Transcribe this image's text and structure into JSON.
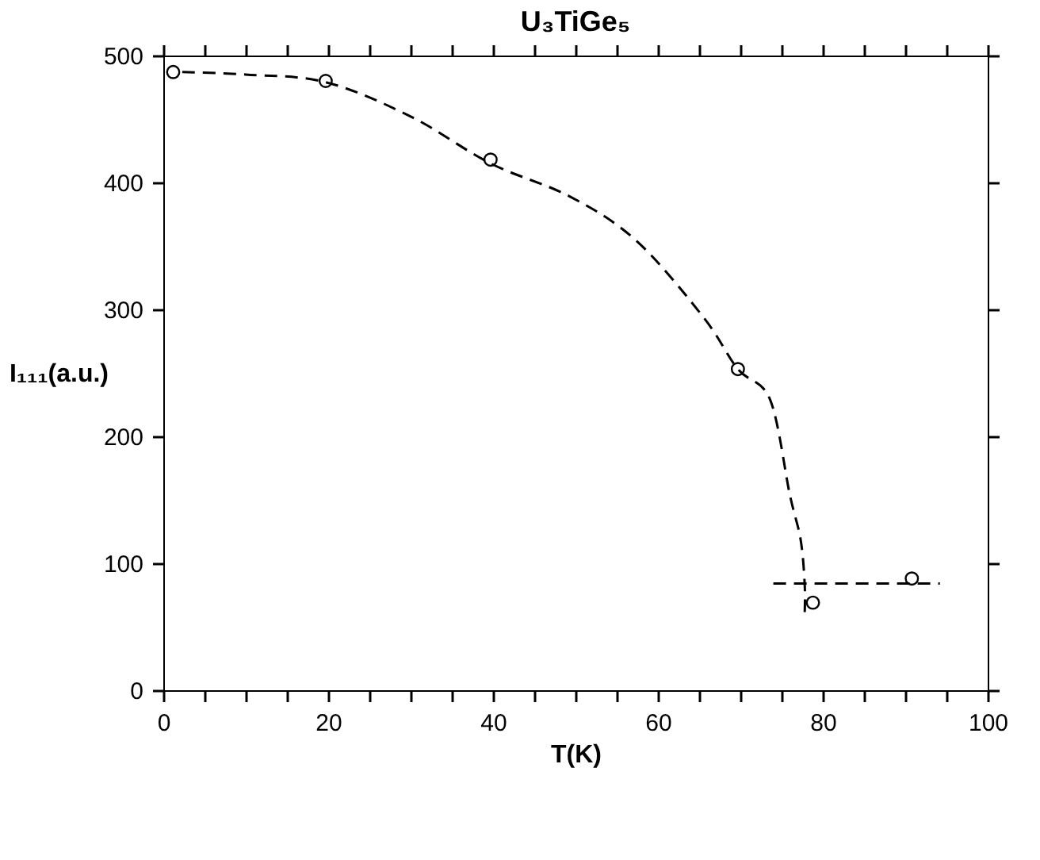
{
  "chart_data": {
    "type": "scatter",
    "title": "U₃TiGe₅",
    "xlabel": "T(K)",
    "ylabel": "I₁₁₁(a.u.)",
    "xlim": [
      0,
      100
    ],
    "ylim": [
      0,
      500
    ],
    "xticks": [
      0,
      {
        "value": 5,
        "label": null
      },
      20,
      {
        "value": 10,
        "label": null
      },
      {
        "value": 15,
        "label": null
      },
      {
        "value": 25,
        "label": null
      },
      {
        "value": 30,
        "label": null
      },
      {
        "value": 35,
        "label": null
      },
      40,
      {
        "value": 45,
        "label": null
      },
      {
        "value": 50,
        "label": null
      },
      {
        "value": 55,
        "label": null
      },
      60,
      {
        "value": 65,
        "label": null
      },
      {
        "value": 70,
        "label": null
      },
      {
        "value": 75,
        "label": null
      },
      80,
      {
        "value": 85,
        "label": null
      },
      {
        "value": 90,
        "label": null
      },
      {
        "value": 95,
        "label": null
      },
      100
    ],
    "yticks": [
      0,
      100,
      200,
      300,
      400,
      500
    ],
    "grid": false,
    "series": [
      {
        "color": "#000000",
        "marker": "circle",
        "x": [
          1.2,
          19.7,
          39.7,
          69.7,
          78.8,
          90.8
        ],
        "values": [
          487,
          480,
          418,
          253,
          69,
          88
        ]
      },
      {
        "type": "line",
        "color": "#000000",
        "line_style": "dashed",
        "marker": "none",
        "x": [
          2.3,
          10,
          19.7,
          30,
          39.7,
          49.3,
          57.4,
          65.5,
          69.7,
          73.6,
          76,
          77.3,
          77.8,
          77.8
        ],
        "values": [
          487,
          485,
          479,
          452,
          415,
          389,
          354,
          294,
          253,
          229,
          154,
          119,
          84,
          60
        ]
      },
      {
        "type": "line",
        "color": "#000000",
        "line_style": "dashed",
        "marker": "none",
        "x": [
          74,
          94.2
        ],
        "values": [
          84,
          84
        ]
      }
    ]
  }
}
